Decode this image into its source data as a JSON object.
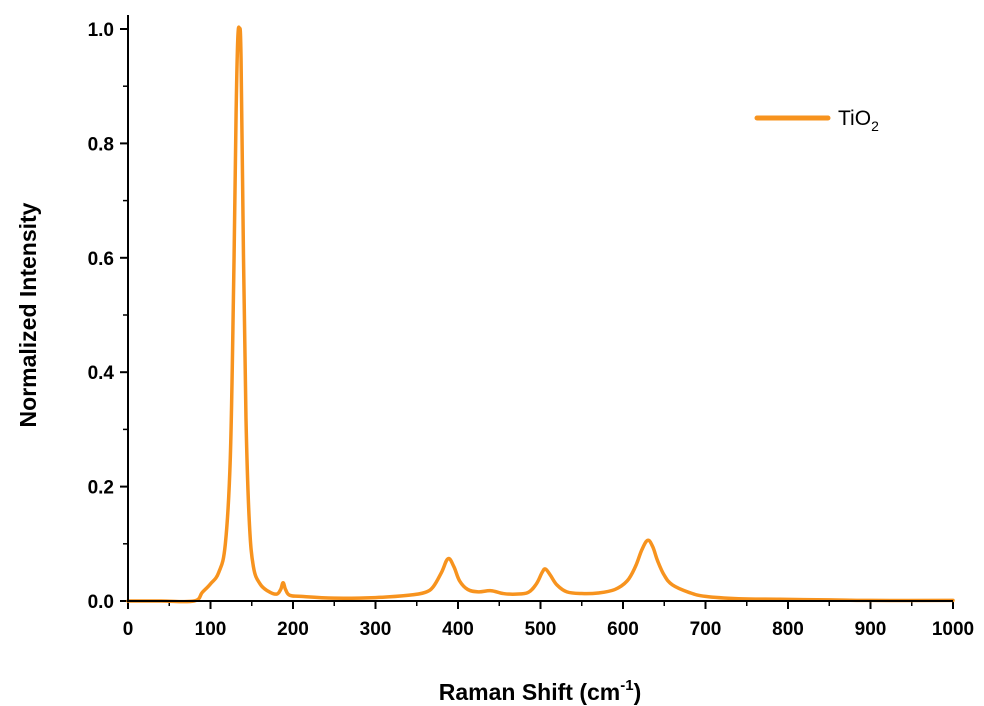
{
  "chart_data": {
    "type": "line",
    "xlabel": {
      "main": "Raman Shift (cm",
      "sup": "-1",
      "close": ")"
    },
    "ylabel": "Normalized Intensity",
    "xlim": [
      0,
      1000
    ],
    "ylim": [
      0,
      1.0
    ],
    "xticks": [
      "0",
      "100",
      "200",
      "300",
      "400",
      "500",
      "600",
      "700",
      "800",
      "900",
      "1000"
    ],
    "yticks": [
      "0.0",
      "0.2",
      "0.4",
      "0.6",
      "0.8",
      "1.0"
    ],
    "grid": false,
    "legend_position": "top-right",
    "series": [
      {
        "name": {
          "main": "TiO",
          "sub": "2"
        },
        "color": "#f7931e",
        "points": [
          [
            0,
            0.0
          ],
          [
            40,
            0.0
          ],
          [
            80,
            0.0
          ],
          [
            90,
            0.015
          ],
          [
            100,
            0.03
          ],
          [
            110,
            0.05
          ],
          [
            118,
            0.1
          ],
          [
            124,
            0.25
          ],
          [
            128,
            0.55
          ],
          [
            131,
            0.85
          ],
          [
            133,
            0.98
          ],
          [
            135,
            1.0
          ],
          [
            137,
            0.95
          ],
          [
            140,
            0.6
          ],
          [
            143,
            0.32
          ],
          [
            147,
            0.14
          ],
          [
            152,
            0.06
          ],
          [
            160,
            0.03
          ],
          [
            170,
            0.017
          ],
          [
            180,
            0.012
          ],
          [
            185,
            0.02
          ],
          [
            188,
            0.032
          ],
          [
            191,
            0.02
          ],
          [
            196,
            0.01
          ],
          [
            210,
            0.008
          ],
          [
            250,
            0.005
          ],
          [
            300,
            0.006
          ],
          [
            340,
            0.01
          ],
          [
            360,
            0.015
          ],
          [
            370,
            0.025
          ],
          [
            380,
            0.05
          ],
          [
            388,
            0.074
          ],
          [
            395,
            0.06
          ],
          [
            402,
            0.035
          ],
          [
            412,
            0.02
          ],
          [
            425,
            0.016
          ],
          [
            440,
            0.018
          ],
          [
            455,
            0.013
          ],
          [
            470,
            0.012
          ],
          [
            485,
            0.015
          ],
          [
            495,
            0.03
          ],
          [
            502,
            0.05
          ],
          [
            506,
            0.056
          ],
          [
            512,
            0.045
          ],
          [
            520,
            0.028
          ],
          [
            532,
            0.016
          ],
          [
            550,
            0.013
          ],
          [
            570,
            0.014
          ],
          [
            590,
            0.02
          ],
          [
            605,
            0.035
          ],
          [
            615,
            0.06
          ],
          [
            623,
            0.09
          ],
          [
            630,
            0.106
          ],
          [
            636,
            0.095
          ],
          [
            642,
            0.07
          ],
          [
            650,
            0.045
          ],
          [
            660,
            0.028
          ],
          [
            680,
            0.015
          ],
          [
            700,
            0.008
          ],
          [
            740,
            0.004
          ],
          [
            790,
            0.003
          ],
          [
            850,
            0.002
          ],
          [
            900,
            0.001
          ],
          [
            1000,
            0.001
          ]
        ]
      }
    ]
  }
}
